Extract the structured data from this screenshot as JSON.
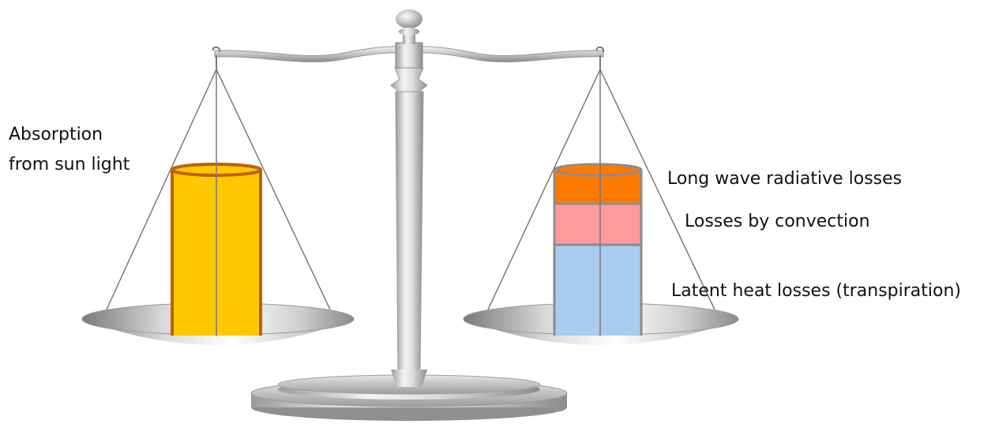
{
  "labels": {
    "absorption": [
      "Absorption",
      "from sun light"
    ],
    "long_wave": "Long wave radiative losses",
    "convection": "Losses by convection",
    "latent": "Latent heat losses (transpiration)"
  },
  "colors": {
    "absorption_fill": "#FFC800",
    "absorption_stroke": "#C0600A",
    "long_wave_fill": "#FF7A00",
    "convection_fill": "#FF9A9E",
    "latent_fill": "#A8CDEE",
    "loss_stroke": "#8C8C8C"
  },
  "diagram_data": {
    "left_pan": [
      "absorption"
    ],
    "right_pan": [
      "latent",
      "convection",
      "long_wave"
    ],
    "right_stack_fraction_bottom_to_top": [
      0.56,
      0.24,
      0.2
    ]
  }
}
